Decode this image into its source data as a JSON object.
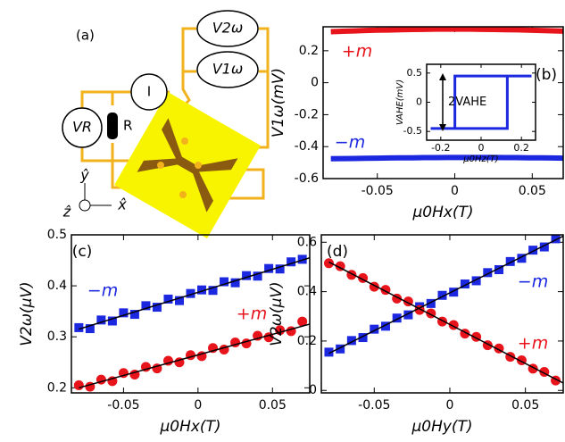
{
  "diagram": {
    "label": "(a)",
    "v2": "V2ω",
    "v1": "V1ω",
    "current": "I",
    "vr": "VR",
    "resistor": "R",
    "y_axis": "ŷ",
    "z_axis": "ẑ",
    "x_axis": "x̂"
  },
  "chart_data": [
    {
      "type": "line",
      "panel_label": "(b)",
      "xlabel": "μ0Hx(T)",
      "ylabel": "V1ω(mV)",
      "xlim": [
        -0.085,
        0.07
      ],
      "ylim": [
        -0.6,
        0.35
      ],
      "xticks": [
        -0.05,
        0,
        0.05
      ],
      "yticks": [
        0.2,
        0,
        -0.2,
        -0.4,
        -0.6
      ],
      "x": [
        -0.08,
        -0.0725,
        -0.065,
        -0.0575,
        -0.05,
        -0.0425,
        -0.035,
        -0.0275,
        -0.02,
        -0.0125,
        -0.005,
        0.0025,
        0.01,
        0.0175,
        0.025,
        0.0325,
        0.04,
        0.0475,
        0.055,
        0.0625,
        0.07
      ],
      "series": [
        {
          "name": "+m",
          "color": "#e8141c",
          "values": [
            0.319,
            0.322,
            0.324,
            0.327,
            0.329,
            0.33,
            0.332,
            0.333,
            0.334,
            0.335,
            0.335,
            0.335,
            0.335,
            0.334,
            0.333,
            0.332,
            0.331,
            0.329,
            0.327,
            0.325,
            0.323
          ]
        },
        {
          "name": "−m",
          "color": "#1c28e0",
          "values": [
            -0.476,
            -0.475,
            -0.474,
            -0.473,
            -0.472,
            -0.471,
            -0.47,
            -0.47,
            -0.469,
            -0.469,
            -0.468,
            -0.468,
            -0.468,
            -0.468,
            -0.468,
            -0.469,
            -0.469,
            -0.47,
            -0.47,
            -0.471,
            -0.472
          ]
        }
      ]
    },
    {
      "type": "line",
      "annotation": "2VAHE",
      "xlabel": "μ0Hz(T)",
      "ylabel": "VAHE(mV)",
      "xlim": [
        -0.27,
        0.27
      ],
      "ylim": [
        -0.65,
        0.65
      ],
      "xticks": [
        -0.2,
        0,
        0.2
      ],
      "yticks": [
        0.5,
        0,
        -0.5
      ],
      "x": [
        -0.25,
        0.13,
        0.13,
        0.25,
        -0.13,
        -0.13,
        -0.25
      ],
      "series": [
        {
          "color": "#1c28e0",
          "values": [
            -0.45,
            -0.45,
            0.45,
            0.45,
            0.45,
            -0.45,
            -0.45
          ]
        }
      ]
    },
    {
      "type": "scatter",
      "panel_label": "(c)",
      "xlabel": "μ0Hx(T)",
      "ylabel": "V2ω(μV)",
      "xlim": [
        -0.085,
        0.075
      ],
      "ylim": [
        0.19,
        0.5
      ],
      "xticks": [
        -0.05,
        0,
        0.05
      ],
      "yticks": [
        0.2,
        0.3,
        0.4,
        0.5
      ],
      "x": [
        -0.08,
        -0.0725,
        -0.065,
        -0.0575,
        -0.05,
        -0.0425,
        -0.035,
        -0.0275,
        -0.02,
        -0.0125,
        -0.005,
        0.0025,
        0.01,
        0.0175,
        0.025,
        0.0325,
        0.04,
        0.0475,
        0.055,
        0.0625,
        0.07
      ],
      "series": [
        {
          "name": "−m",
          "color": "#1c28e0",
          "marker": "square",
          "values": [
            0.318,
            0.316,
            0.333,
            0.331,
            0.347,
            0.344,
            0.361,
            0.358,
            0.374,
            0.371,
            0.385,
            0.392,
            0.391,
            0.408,
            0.406,
            0.42,
            0.419,
            0.434,
            0.433,
            0.447,
            0.452
          ]
        },
        {
          "name": "+m",
          "color": "#e8141c",
          "marker": "circle",
          "values": [
            0.205,
            0.202,
            0.216,
            0.213,
            0.229,
            0.226,
            0.241,
            0.238,
            0.253,
            0.25,
            0.264,
            0.262,
            0.278,
            0.275,
            0.289,
            0.287,
            0.302,
            0.299,
            0.313,
            0.311,
            0.33
          ]
        },
        {
          "color": "#000000",
          "mode": "line",
          "x": [
            -0.08,
            0.075
          ],
          "values": [
            0.315,
            0.455
          ]
        },
        {
          "color": "#000000",
          "mode": "line",
          "x": [
            -0.08,
            0.075
          ],
          "values": [
            0.2,
            0.325
          ]
        }
      ]
    },
    {
      "type": "scatter",
      "panel_label": "(d)",
      "xlabel": "μ0Hy(T)",
      "ylabel": "V2ω(μV)",
      "xlim": [
        -0.085,
        0.075
      ],
      "ylim": [
        -0.01,
        0.63
      ],
      "xticks": [
        -0.05,
        0,
        0.05
      ],
      "yticks": [
        0,
        0.2,
        0.4,
        0.6
      ],
      "x": [
        -0.08,
        -0.0725,
        -0.065,
        -0.0575,
        -0.05,
        -0.0425,
        -0.035,
        -0.0275,
        -0.02,
        -0.0125,
        -0.005,
        0.0025,
        0.01,
        0.0175,
        0.025,
        0.0325,
        0.04,
        0.0475,
        0.055,
        0.0625,
        0.07
      ],
      "series": [
        {
          "name": "−m",
          "color": "#1c28e0",
          "marker": "square",
          "values": [
            0.155,
            0.168,
            0.202,
            0.214,
            0.248,
            0.26,
            0.293,
            0.306,
            0.339,
            0.352,
            0.385,
            0.398,
            0.431,
            0.444,
            0.477,
            0.489,
            0.522,
            0.535,
            0.568,
            0.581,
            0.614
          ]
        },
        {
          "name": "+m",
          "color": "#e8141c",
          "marker": "circle",
          "values": [
            0.515,
            0.503,
            0.468,
            0.455,
            0.42,
            0.407,
            0.372,
            0.36,
            0.326,
            0.312,
            0.279,
            0.265,
            0.23,
            0.217,
            0.183,
            0.17,
            0.136,
            0.122,
            0.088,
            0.075,
            0.04
          ]
        },
        {
          "color": "#000000",
          "mode": "line",
          "x": [
            -0.08,
            0.075
          ],
          "values": [
            0.15,
            0.625
          ]
        },
        {
          "color": "#000000",
          "mode": "line",
          "x": [
            -0.08,
            0.075
          ],
          "values": [
            0.52,
            0.03
          ]
        }
      ]
    }
  ]
}
